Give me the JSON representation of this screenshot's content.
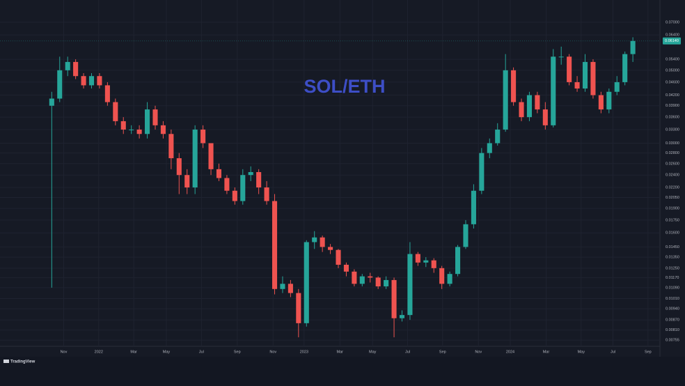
{
  "chart_data": {
    "type": "candlestick",
    "title": "SOL/ETH",
    "brand": "TradingView",
    "last_price": {
      "value": 0.0614,
      "label": "0.06140"
    },
    "log_scale": true,
    "grid": true,
    "up_color": "#26a69a",
    "down_color": "#ef5350",
    "xlim": [
      -6.5,
      76.4
    ],
    "xticks": [
      {
        "value": 1.5,
        "label": "Nov"
      },
      {
        "value": 5.9,
        "label": "2022"
      },
      {
        "value": 10.3,
        "label": "Mar"
      },
      {
        "value": 14.4,
        "label": "May"
      },
      {
        "value": 18.8,
        "label": "Jul"
      },
      {
        "value": 23.3,
        "label": "Sep"
      },
      {
        "value": 27.8,
        "label": "Nov"
      },
      {
        "value": 31.7,
        "label": "2023"
      },
      {
        "value": 36.2,
        "label": "Mar"
      },
      {
        "value": 40.3,
        "label": "May"
      },
      {
        "value": 44.7,
        "label": "Jul"
      },
      {
        "value": 49.1,
        "label": "Sep"
      },
      {
        "value": 53.6,
        "label": "Nov"
      },
      {
        "value": 57.6,
        "label": "2024"
      },
      {
        "value": 62.1,
        "label": "Mar"
      },
      {
        "value": 66.5,
        "label": "May"
      },
      {
        "value": 70.5,
        "label": "Jul"
      },
      {
        "value": 74.9,
        "label": "Sep"
      }
    ],
    "ylim": [
      0.00723,
      0.0818
    ],
    "yticks": [
      {
        "value": 0.07,
        "label": "0.07000"
      },
      {
        "value": 0.064,
        "label": "0.06400"
      },
      {
        "value": 0.054,
        "label": "0.05400"
      },
      {
        "value": 0.05,
        "label": "0.05000"
      },
      {
        "value": 0.046,
        "label": "0.04600"
      },
      {
        "value": 0.042,
        "label": "0.04200"
      },
      {
        "value": 0.039,
        "label": "0.03900"
      },
      {
        "value": 0.036,
        "label": "0.03600"
      },
      {
        "value": 0.033,
        "label": "0.03300"
      },
      {
        "value": 0.03,
        "label": "0.03000"
      },
      {
        "value": 0.028,
        "label": "0.02800"
      },
      {
        "value": 0.026,
        "label": "0.02600"
      },
      {
        "value": 0.024,
        "label": "0.02400"
      },
      {
        "value": 0.022,
        "label": "0.02200"
      },
      {
        "value": 0.0205,
        "label": "0.02050"
      },
      {
        "value": 0.019,
        "label": "0.01900"
      },
      {
        "value": 0.0175,
        "label": "0.01750"
      },
      {
        "value": 0.016,
        "label": "0.01600"
      },
      {
        "value": 0.0145,
        "label": "0.01450"
      },
      {
        "value": 0.0135,
        "label": "0.01350"
      },
      {
        "value": 0.0125,
        "label": "0.01250"
      },
      {
        "value": 0.0117,
        "label": "0.01170"
      },
      {
        "value": 0.0109,
        "label": "0.01090"
      },
      {
        "value": 0.0101,
        "label": "0.01010"
      },
      {
        "value": 0.0094,
        "label": "0.00940"
      },
      {
        "value": 0.0087,
        "label": "0.00870"
      },
      {
        "value": 0.0081,
        "label": "0.00810"
      },
      {
        "value": 0.00755,
        "label": "0.00755"
      }
    ],
    "open": [
      0.039,
      0.041,
      0.05,
      0.053,
      0.048,
      0.045,
      0.048,
      0.045,
      0.04,
      0.035,
      0.033,
      0.033,
      0.032,
      0.038,
      0.034,
      0.032,
      0.027,
      0.024,
      0.022,
      0.033,
      0.03,
      0.025,
      0.0235,
      0.0215,
      0.02,
      0.024,
      0.0245,
      0.022,
      0.02,
      0.0108,
      0.0112,
      0.0105,
      0.0085,
      0.015,
      0.0155,
      0.0145,
      0.0142,
      0.0128,
      0.0122,
      0.0112,
      0.0118,
      0.0117,
      0.011,
      0.0115,
      0.0088,
      0.009,
      0.0138,
      0.013,
      0.0132,
      0.0125,
      0.0112,
      0.012,
      0.0145,
      0.017,
      0.0215,
      0.028,
      0.03,
      0.033,
      0.05,
      0.04,
      0.036,
      0.042,
      0.038,
      0.034,
      0.055,
      0.055,
      0.046,
      0.044,
      0.053,
      0.042,
      0.038,
      0.043,
      0.046,
      0.056
    ],
    "high": [
      0.043,
      0.055,
      0.055,
      0.054,
      0.049,
      0.049,
      0.049,
      0.046,
      0.041,
      0.036,
      0.034,
      0.034,
      0.04,
      0.039,
      0.035,
      0.033,
      0.028,
      0.025,
      0.034,
      0.034,
      0.03,
      0.026,
      0.024,
      0.022,
      0.025,
      0.0255,
      0.025,
      0.023,
      0.021,
      0.0118,
      0.0115,
      0.0108,
      0.0152,
      0.0162,
      0.0157,
      0.0148,
      0.0143,
      0.013,
      0.0124,
      0.012,
      0.0121,
      0.0118,
      0.0118,
      0.0117,
      0.0093,
      0.015,
      0.014,
      0.0135,
      0.0134,
      0.0127,
      0.0122,
      0.0147,
      0.0175,
      0.0225,
      0.029,
      0.031,
      0.0345,
      0.056,
      0.051,
      0.041,
      0.043,
      0.043,
      0.04,
      0.058,
      0.059,
      0.056,
      0.048,
      0.056,
      0.054,
      0.043,
      0.044,
      0.048,
      0.057,
      0.063
    ],
    "low": [
      0.0109,
      0.04,
      0.048,
      0.047,
      0.044,
      0.044,
      0.044,
      0.039,
      0.034,
      0.032,
      0.032,
      0.031,
      0.031,
      0.033,
      0.031,
      0.025,
      0.021,
      0.021,
      0.021,
      0.029,
      0.024,
      0.023,
      0.021,
      0.0195,
      0.0195,
      0.023,
      0.021,
      0.0195,
      0.0104,
      0.0105,
      0.0102,
      0.0077,
      0.0083,
      0.0143,
      0.014,
      0.0138,
      0.0125,
      0.0118,
      0.011,
      0.011,
      0.0113,
      0.0108,
      0.0108,
      0.0077,
      0.0086,
      0.0087,
      0.0127,
      0.0126,
      0.0121,
      0.0108,
      0.011,
      0.0118,
      0.0143,
      0.0165,
      0.021,
      0.027,
      0.0295,
      0.0325,
      0.039,
      0.035,
      0.035,
      0.037,
      0.033,
      0.0335,
      0.052,
      0.045,
      0.043,
      0.043,
      0.041,
      0.037,
      0.037,
      0.042,
      0.045,
      0.053
    ],
    "close": [
      0.041,
      0.05,
      0.053,
      0.048,
      0.045,
      0.048,
      0.045,
      0.04,
      0.035,
      0.033,
      0.033,
      0.032,
      0.038,
      0.034,
      0.032,
      0.027,
      0.024,
      0.022,
      0.033,
      0.03,
      0.025,
      0.0235,
      0.0215,
      0.02,
      0.024,
      0.0245,
      0.022,
      0.02,
      0.0108,
      0.0112,
      0.0105,
      0.0085,
      0.015,
      0.0155,
      0.0145,
      0.0142,
      0.0128,
      0.0122,
      0.0112,
      0.0118,
      0.0117,
      0.011,
      0.0115,
      0.0088,
      0.009,
      0.0138,
      0.013,
      0.0132,
      0.0125,
      0.0112,
      0.012,
      0.0145,
      0.017,
      0.0215,
      0.028,
      0.03,
      0.033,
      0.05,
      0.04,
      0.036,
      0.042,
      0.038,
      0.034,
      0.055,
      0.055,
      0.046,
      0.044,
      0.053,
      0.042,
      0.038,
      0.043,
      0.046,
      0.056,
      0.0614
    ]
  }
}
